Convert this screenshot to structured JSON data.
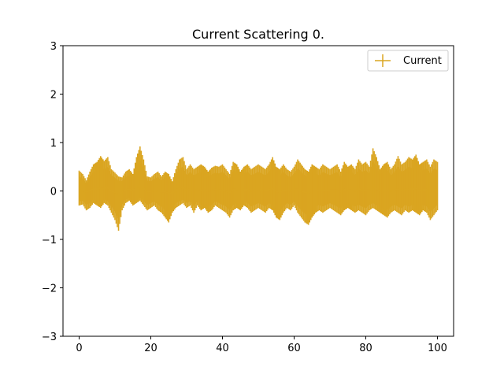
{
  "chart_data": {
    "type": "errorbar",
    "title": "Current Scattering 0.",
    "xlabel": "",
    "ylabel": "",
    "xlim": [
      -4.5,
      104.5
    ],
    "ylim": [
      -3,
      3
    ],
    "x_ticks": [
      0,
      20,
      40,
      60,
      80,
      100
    ],
    "x_tick_labels": [
      "0",
      "20",
      "40",
      "60",
      "80",
      "100"
    ],
    "y_ticks": [
      -3,
      -2,
      -1,
      0,
      1,
      2,
      3
    ],
    "y_tick_labels": [
      "−3",
      "−2",
      "−1",
      "0",
      "1",
      "2",
      "3"
    ],
    "grid": false,
    "legend_position": "top-right",
    "series": [
      {
        "name": "Current",
        "color": "#DAA520",
        "x": [
          0,
          1,
          2,
          3,
          4,
          5,
          6,
          7,
          8,
          9,
          10,
          11,
          12,
          13,
          14,
          15,
          16,
          17,
          18,
          19,
          20,
          21,
          22,
          23,
          24,
          25,
          26,
          27,
          28,
          29,
          30,
          31,
          32,
          33,
          34,
          35,
          36,
          37,
          38,
          39,
          40,
          41,
          42,
          43,
          44,
          45,
          46,
          47,
          48,
          49,
          50,
          51,
          52,
          53,
          54,
          55,
          56,
          57,
          58,
          59,
          60,
          61,
          62,
          63,
          64,
          65,
          66,
          67,
          68,
          69,
          70,
          71,
          72,
          73,
          74,
          75,
          76,
          77,
          78,
          79,
          80,
          81,
          82,
          83,
          84,
          85,
          86,
          87,
          88,
          89,
          90,
          91,
          92,
          93,
          94,
          95,
          96,
          97,
          98,
          99,
          100
        ],
        "upper": [
          0.42,
          0.35,
          0.22,
          0.4,
          0.55,
          0.6,
          0.72,
          0.62,
          0.7,
          0.45,
          0.38,
          0.3,
          0.28,
          0.4,
          0.45,
          0.35,
          0.7,
          0.92,
          0.65,
          0.3,
          0.28,
          0.35,
          0.4,
          0.3,
          0.4,
          0.35,
          0.2,
          0.45,
          0.65,
          0.7,
          0.45,
          0.55,
          0.45,
          0.5,
          0.55,
          0.5,
          0.4,
          0.48,
          0.52,
          0.5,
          0.55,
          0.45,
          0.35,
          0.6,
          0.55,
          0.4,
          0.5,
          0.55,
          0.45,
          0.5,
          0.55,
          0.5,
          0.45,
          0.55,
          0.7,
          0.5,
          0.45,
          0.55,
          0.45,
          0.4,
          0.5,
          0.65,
          0.55,
          0.45,
          0.4,
          0.55,
          0.5,
          0.45,
          0.55,
          0.5,
          0.45,
          0.5,
          0.55,
          0.4,
          0.6,
          0.5,
          0.55,
          0.45,
          0.65,
          0.55,
          0.6,
          0.5,
          0.88,
          0.7,
          0.45,
          0.55,
          0.6,
          0.45,
          0.55,
          0.72,
          0.55,
          0.6,
          0.7,
          0.65,
          0.75,
          0.55,
          0.6,
          0.65,
          0.5,
          0.65,
          0.6
        ],
        "lower": [
          -0.3,
          -0.28,
          -0.4,
          -0.35,
          -0.25,
          -0.3,
          -0.35,
          -0.25,
          -0.3,
          -0.45,
          -0.6,
          -0.82,
          -0.4,
          -0.25,
          -0.2,
          -0.3,
          -0.25,
          -0.2,
          -0.3,
          -0.4,
          -0.35,
          -0.3,
          -0.4,
          -0.45,
          -0.55,
          -0.65,
          -0.45,
          -0.35,
          -0.3,
          -0.25,
          -0.35,
          -0.3,
          -0.45,
          -0.3,
          -0.4,
          -0.35,
          -0.45,
          -0.4,
          -0.3,
          -0.35,
          -0.4,
          -0.45,
          -0.55,
          -0.4,
          -0.35,
          -0.4,
          -0.3,
          -0.35,
          -0.45,
          -0.4,
          -0.35,
          -0.4,
          -0.45,
          -0.35,
          -0.4,
          -0.55,
          -0.6,
          -0.45,
          -0.35,
          -0.4,
          -0.3,
          -0.45,
          -0.55,
          -0.65,
          -0.7,
          -0.55,
          -0.45,
          -0.4,
          -0.45,
          -0.4,
          -0.35,
          -0.4,
          -0.45,
          -0.5,
          -0.4,
          -0.35,
          -0.4,
          -0.45,
          -0.4,
          -0.45,
          -0.5,
          -0.4,
          -0.35,
          -0.4,
          -0.45,
          -0.5,
          -0.55,
          -0.45,
          -0.4,
          -0.45,
          -0.5,
          -0.4,
          -0.45,
          -0.4,
          -0.45,
          -0.5,
          -0.4,
          -0.45,
          -0.6,
          -0.5,
          -0.4
        ]
      }
    ]
  }
}
